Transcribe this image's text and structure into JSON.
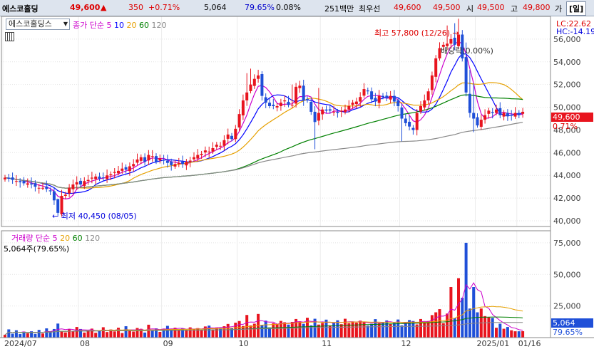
{
  "quote_bar": {
    "stock_name": "에스코홀딩",
    "price": "49,600",
    "change_arrow": "▲",
    "change": "350",
    "change_pct": "+0.71%",
    "volume": "5,064",
    "volume_pct": "79.65%",
    "turnover_pct": "0.08%",
    "trade_value": "251백만",
    "priority_label": "최우선",
    "ask": "49,600",
    "bid": "49,500",
    "open_label": "시",
    "open": "49,500",
    "high_label": "고",
    "high": "49,800",
    "extra": "가",
    "mode_button": "[일]"
  },
  "price_panel": {
    "stock_dropdown": "에스코홀딩스",
    "indicator_label": "종가 단순",
    "ma_periods": [
      "5",
      "10",
      "20",
      "60",
      "120"
    ],
    "ma_colors": [
      "#cc00cc",
      "#0000ff",
      "#e6a000",
      "#008000",
      "#888888"
    ],
    "lc_label": "LC:22.62",
    "hc_label": "HC:-14.19",
    "current_price": "49,600",
    "current_change": "0.71%",
    "max_label": "최고 57,800 (12/26)",
    "min_label": "최저 40,450 (08/05)",
    "dividend_label": "배당락(0.00%)"
  },
  "volume_panel": {
    "label": "거래량",
    "indicator_label": "단순",
    "ma_periods": [
      "5",
      "20",
      "60",
      "120"
    ],
    "ma_colors": [
      "#cc00cc",
      "#e6a000",
      "#008000",
      "#888888"
    ],
    "current_volume": "5,064주(79.65%)",
    "right_value": "5,064",
    "right_pct": "79.65%"
  },
  "time_axis": [
    "2024/07",
    "08",
    "09",
    "10",
    "11",
    "12",
    "2025/01",
    "01/16"
  ],
  "chart_data": {
    "type": "candlestick",
    "title": "에스코홀딩스",
    "xlabel": "",
    "ylabel": "",
    "price_ylim": [
      39500,
      58000
    ],
    "price_ticks": [
      40000,
      42000,
      44000,
      46000,
      48000,
      50000,
      52000,
      54000,
      56000
    ],
    "volume_ylim": [
      0,
      80000
    ],
    "volume_ticks": [
      25000,
      50000,
      75000
    ],
    "month_markers": [
      {
        "label": "2024/07",
        "index": 0
      },
      {
        "label": "08",
        "index": 20
      },
      {
        "label": "09",
        "index": 42
      },
      {
        "label": "10",
        "index": 62
      },
      {
        "label": "11",
        "index": 84
      },
      {
        "label": "12",
        "index": 105
      },
      {
        "label": "2025/01",
        "index": 125
      },
      {
        "label": "01/16",
        "index": 136
      }
    ],
    "closes": [
      43800,
      43700,
      43600,
      43500,
      43400,
      43300,
      43300,
      43200,
      43000,
      42900,
      42900,
      42800,
      42600,
      41800,
      40700,
      42200,
      42300,
      42900,
      43200,
      43400,
      43200,
      43500,
      43600,
      43800,
      43900,
      43700,
      43800,
      44000,
      44100,
      44300,
      44400,
      44600,
      44500,
      44800,
      45000,
      45400,
      45600,
      45200,
      45800,
      45700,
      45200,
      45500,
      45300,
      45100,
      44900,
      45000,
      45100,
      45000,
      45200,
      45300,
      45600,
      45800,
      45900,
      46200,
      46100,
      46400,
      46700,
      46600,
      47100,
      47600,
      47200,
      48100,
      49400,
      50600,
      51300,
      52000,
      52500,
      52800,
      51000,
      50400,
      50100,
      50100,
      50100,
      50400,
      50600,
      50200,
      50200,
      51800,
      51900,
      50600,
      50600,
      49600,
      48700,
      49500,
      49800,
      49700,
      49700,
      49600,
      49500,
      49700,
      49800,
      50100,
      50400,
      50500,
      50900,
      51600,
      51400,
      50700,
      50500,
      51000,
      50900,
      50800,
      51000,
      50500,
      50100,
      49000,
      48600,
      48300,
      48000,
      49500,
      50100,
      50600,
      51400,
      52800,
      54300,
      55200,
      55500,
      55600,
      56000,
      55500,
      56400,
      54300,
      51300,
      49500,
      49000,
      48400,
      48900,
      49300,
      49700,
      49500,
      49800,
      49300,
      49500,
      49200,
      49300,
      49500,
      49300,
      49600
    ],
    "volumes": [
      2200,
      6500,
      3100,
      5800,
      2800,
      4700,
      3400,
      5000,
      2900,
      6100,
      3300,
      7300,
      4200,
      6800,
      11100,
      5300,
      4100,
      6600,
      5000,
      8400,
      6800,
      4000,
      5600,
      7100,
      3800,
      5500,
      8200,
      4400,
      6400,
      4900,
      7800,
      3600,
      9000,
      5500,
      4800,
      7600,
      6900,
      4000,
      10200,
      5600,
      7300,
      4500,
      6900,
      9300,
      6300,
      7800,
      6200,
      7100,
      5800,
      8100,
      6600,
      7500,
      6100,
      8800,
      9500,
      6500,
      8000,
      7400,
      9000,
      10800,
      7600,
      11800,
      13100,
      9200,
      17900,
      9600,
      11000,
      18700,
      9900,
      13400,
      8000,
      11400,
      10600,
      13200,
      12100,
      10300,
      12400,
      14700,
      12900,
      10900,
      15700,
      9700,
      14900,
      10300,
      11600,
      14200,
      9700,
      12200,
      13700,
      10600,
      14900,
      11400,
      12500,
      11800,
      13400,
      12100,
      9500,
      10900,
      14600,
      11300,
      12300,
      13600,
      10800,
      11700,
      14300,
      9700,
      11100,
      13900,
      13100,
      10400,
      14700,
      12000,
      13100,
      17800,
      20000,
      22500,
      11400,
      19000,
      40000,
      15500,
      47000,
      31500,
      75000,
      23000,
      40000,
      20000,
      23000,
      17000,
      16000,
      15600,
      7800,
      11000,
      7000,
      8400,
      5800,
      5000,
      5000,
      5064
    ],
    "series": [
      {
        "name": "5",
        "values": []
      },
      {
        "name": "10",
        "values": []
      },
      {
        "name": "20",
        "values": []
      },
      {
        "name": "60",
        "values": []
      },
      {
        "name": "120",
        "values": []
      }
    ]
  }
}
